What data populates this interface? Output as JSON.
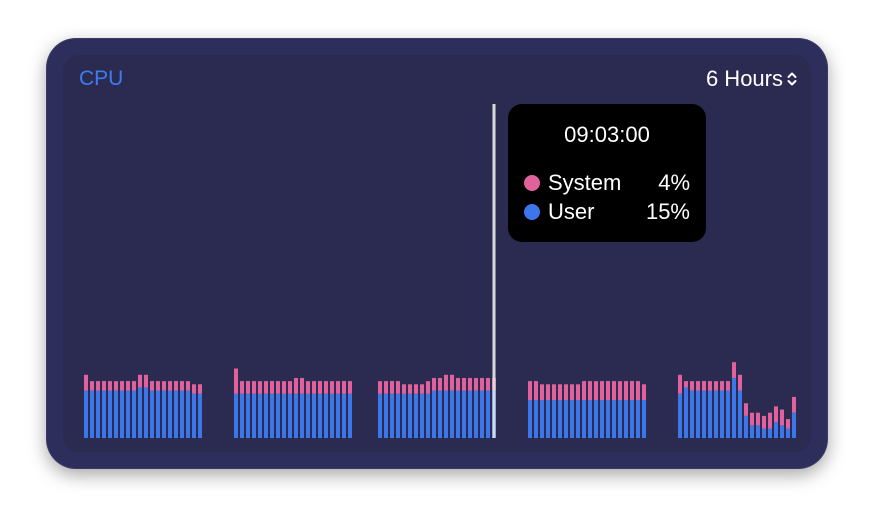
{
  "widget": {
    "title": "CPU",
    "range_label": "6 Hours",
    "range_icon": "chevron-up-down-icon"
  },
  "colors": {
    "system": "#e0619b",
    "user": "#3c77ea",
    "title": "#3f7bf0",
    "cursor": "#d8d8d8"
  },
  "tooltip": {
    "time": "09:03:00",
    "rows": [
      {
        "label": "System",
        "value": "4%",
        "color": "#e0619b"
      },
      {
        "label": "User",
        "value": "15%",
        "color": "#3c77ea"
      }
    ]
  },
  "chart_data": {
    "type": "bar",
    "stacked": true,
    "ylim": [
      0,
      100
    ],
    "groups": [
      {
        "user": [
          15,
          15,
          15,
          15,
          15,
          15,
          15,
          15,
          15,
          16,
          16,
          15,
          15,
          15,
          15,
          15,
          15,
          15,
          14,
          14
        ],
        "system": [
          5,
          3,
          3,
          3,
          3,
          3,
          3,
          3,
          3,
          4,
          4,
          3,
          3,
          3,
          3,
          3,
          3,
          3,
          3,
          3
        ]
      },
      {
        "user": [
          14,
          14,
          14,
          14,
          14,
          14,
          14,
          14,
          14,
          14,
          14,
          14,
          14,
          14,
          14,
          14,
          14,
          14,
          14,
          14
        ],
        "system": [
          8,
          4,
          4,
          4,
          4,
          4,
          4,
          4,
          4,
          4,
          5,
          5,
          4,
          4,
          4,
          4,
          4,
          4,
          4,
          4
        ]
      },
      {
        "user": [
          14,
          14,
          14,
          14,
          14,
          14,
          14,
          14,
          14,
          15,
          15,
          15,
          15,
          15,
          15,
          15,
          15,
          15,
          15,
          15
        ],
        "system": [
          4,
          4,
          4,
          4,
          3,
          3,
          3,
          3,
          4,
          4,
          4,
          5,
          5,
          4,
          4,
          4,
          4,
          4,
          4,
          4
        ]
      },
      {
        "user": [
          12,
          12,
          12,
          12,
          12,
          12,
          12,
          12,
          12,
          12,
          12,
          12,
          12,
          12,
          12,
          12,
          12,
          12,
          12,
          12
        ],
        "system": [
          6,
          6,
          5,
          5,
          5,
          5,
          5,
          5,
          5,
          6,
          6,
          6,
          6,
          6,
          6,
          6,
          6,
          6,
          6,
          5
        ]
      },
      {
        "user": [
          14,
          16,
          15,
          15,
          15,
          15,
          15,
          15,
          15,
          19,
          15,
          7,
          4,
          4,
          3,
          3,
          5,
          4,
          3,
          8
        ],
        "system": [
          6,
          2,
          3,
          3,
          3,
          3,
          3,
          3,
          3,
          5,
          5,
          4,
          4,
          4,
          4,
          5,
          5,
          5,
          3,
          5
        ]
      }
    ],
    "cursor": {
      "time": "09:03:00",
      "system": 4,
      "user": 15
    }
  }
}
